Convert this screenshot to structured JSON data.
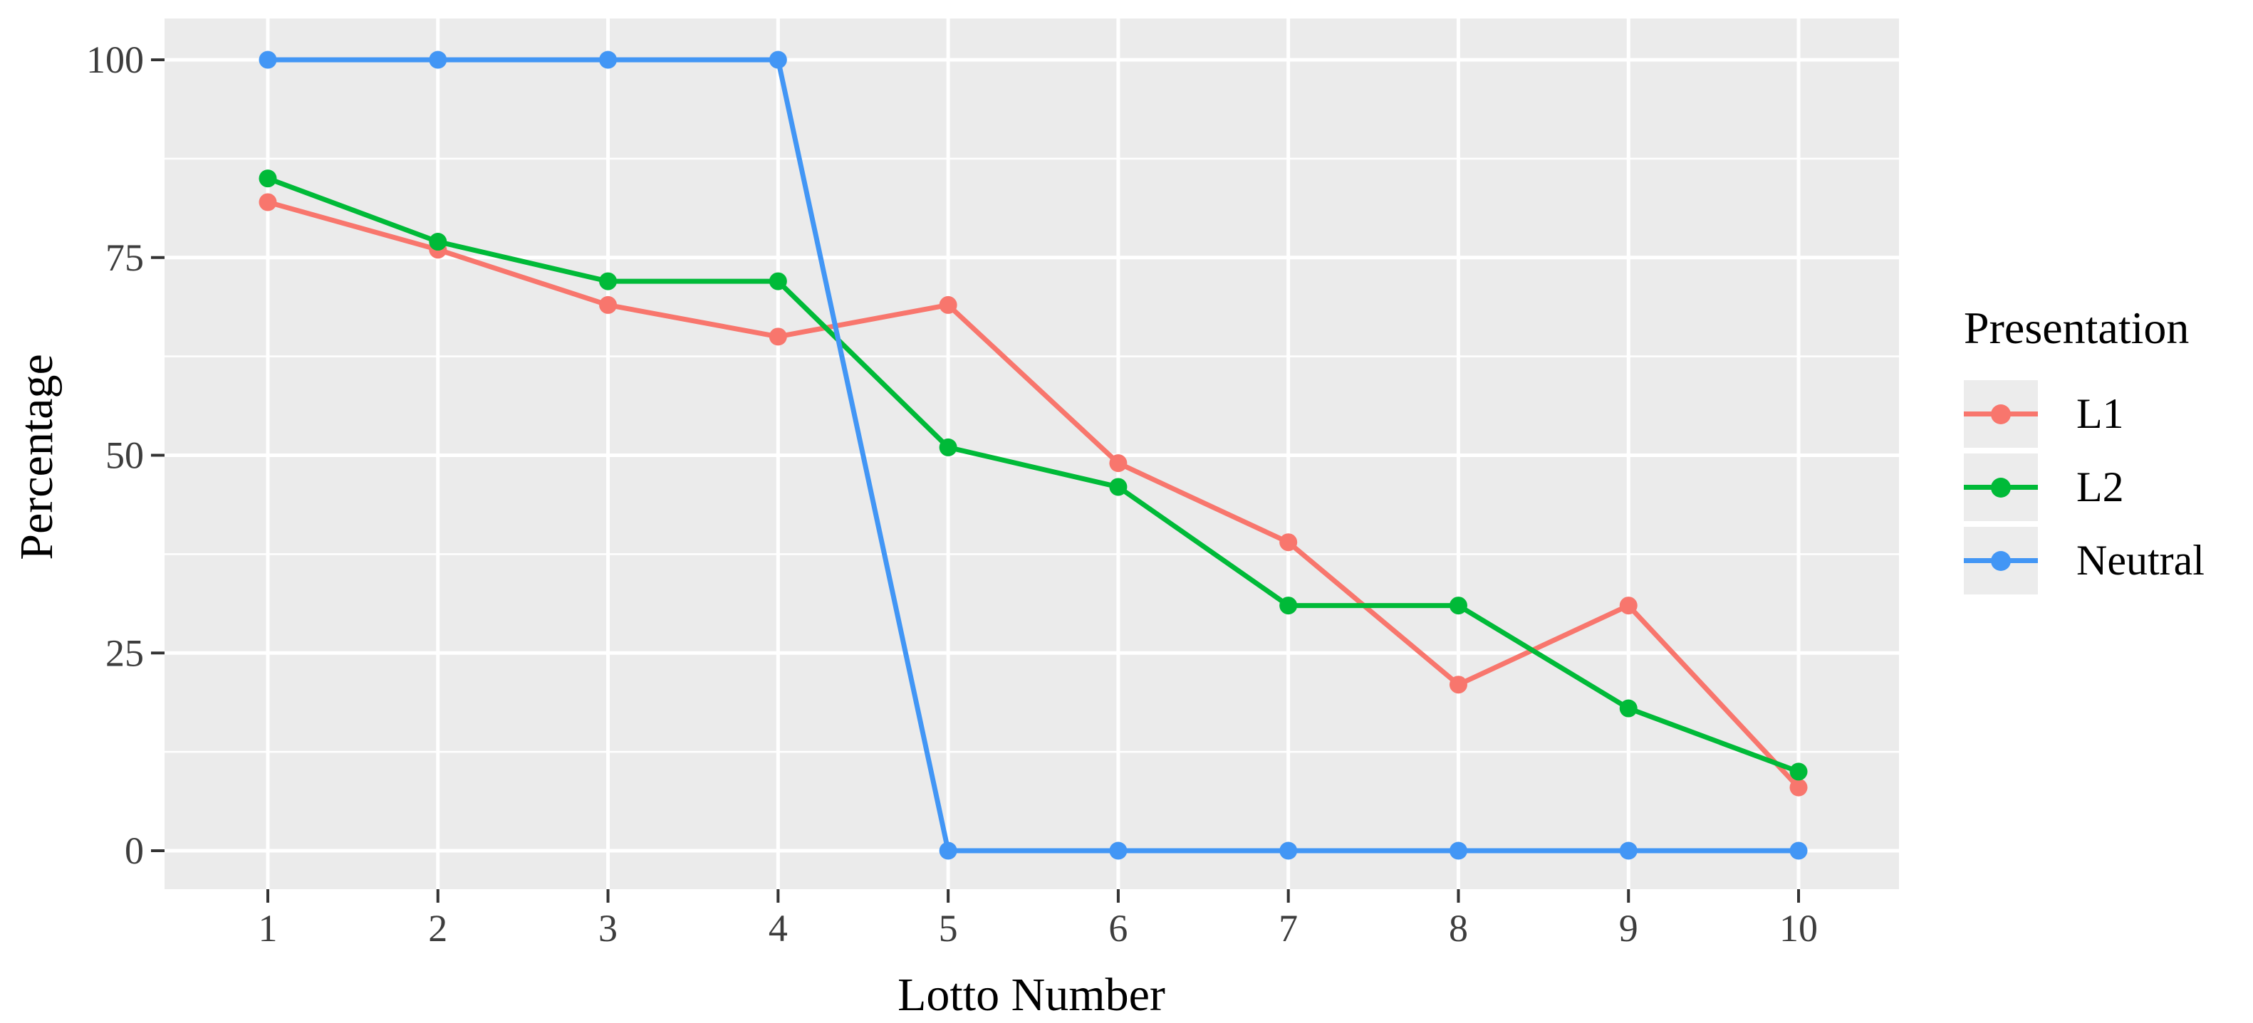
{
  "chart_data": {
    "type": "line",
    "title": "",
    "xlabel": "Lotto Number",
    "ylabel": "Percentage",
    "x": [
      1,
      2,
      3,
      4,
      5,
      6,
      7,
      8,
      9,
      10
    ],
    "x_major_ticks": [
      1,
      2,
      3,
      4,
      5,
      6,
      7,
      8,
      9,
      10
    ],
    "y_major_ticks": [
      0,
      25,
      50,
      75,
      100
    ],
    "y_minor_gridlines": [
      12.5,
      37.5,
      62.5,
      87.5
    ],
    "ylim": [
      0,
      100
    ],
    "grid": "horizontal major+minor, vertical major only, white on grey panel",
    "legend": {
      "title": "Presentation",
      "position": "right"
    },
    "series": [
      {
        "name": "L1",
        "color": "#F8766D",
        "values": [
          82,
          76,
          69,
          65,
          69,
          49,
          39,
          21,
          31,
          8
        ]
      },
      {
        "name": "L2",
        "color": "#00BA38",
        "values": [
          85,
          77,
          72,
          72,
          51,
          46,
          31,
          31,
          18,
          10
        ]
      },
      {
        "name": "Neutral",
        "color": "#4296F5",
        "values": [
          100,
          100,
          100,
          100,
          0,
          0,
          0,
          0,
          0,
          0
        ]
      }
    ],
    "panel_background": "#EBEBEB",
    "gridline_color": "#FFFFFF",
    "tick_color": "#333333",
    "tick_label_color": "#3D3D3D",
    "axis_title_color": "#000000"
  }
}
